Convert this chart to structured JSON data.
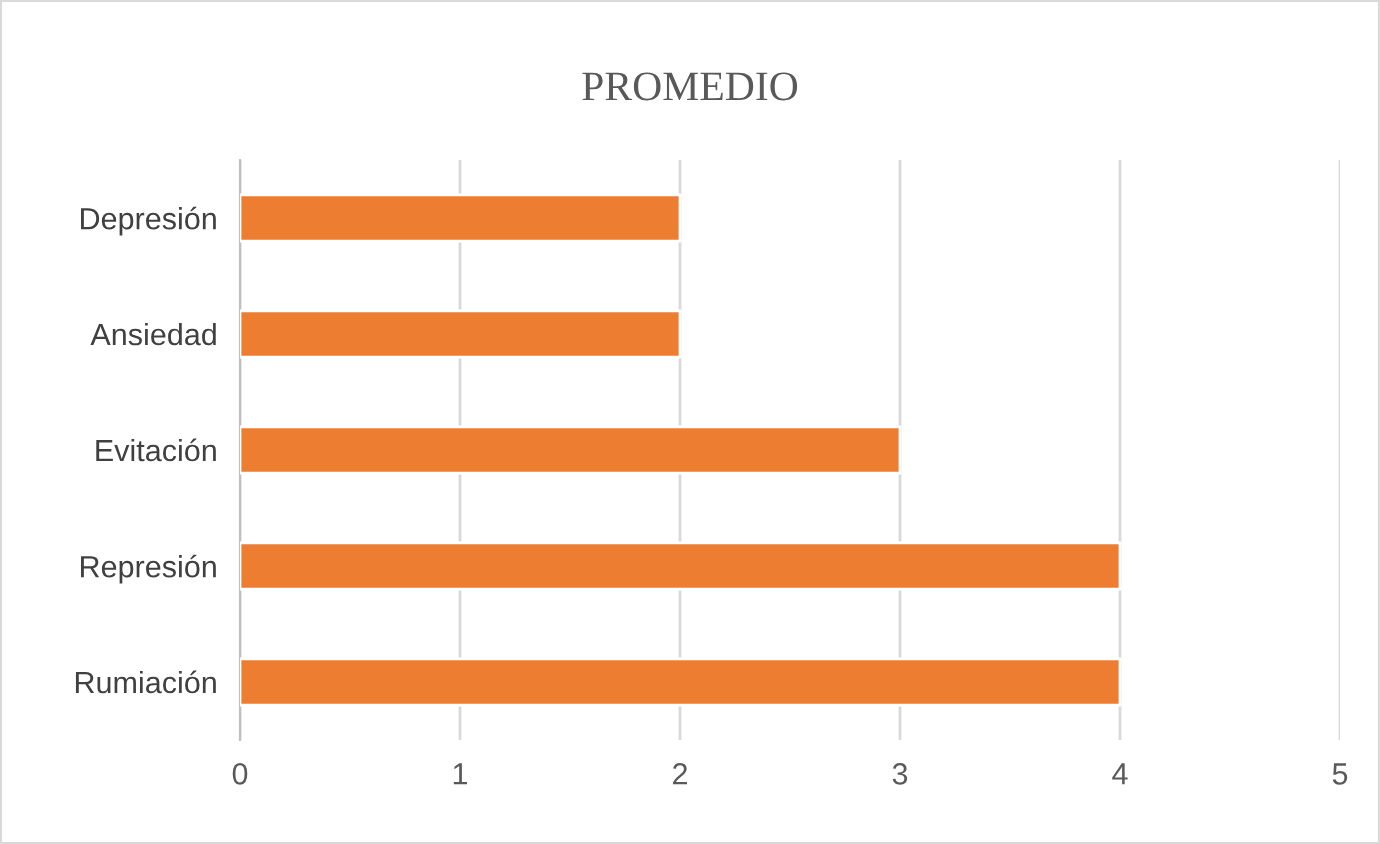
{
  "chart_data": {
    "type": "bar",
    "orientation": "horizontal",
    "title": "PROMEDIO",
    "categories": [
      "Depresión",
      "Ansiedad",
      "Evitación",
      "Represión",
      "Rumiación"
    ],
    "values": [
      2,
      2,
      3,
      4,
      4
    ],
    "color": "#ed7d31",
    "xlim": [
      0,
      5
    ],
    "xticks": [
      0,
      1,
      2,
      3,
      4,
      5
    ],
    "grid": "x",
    "legend": false
  }
}
